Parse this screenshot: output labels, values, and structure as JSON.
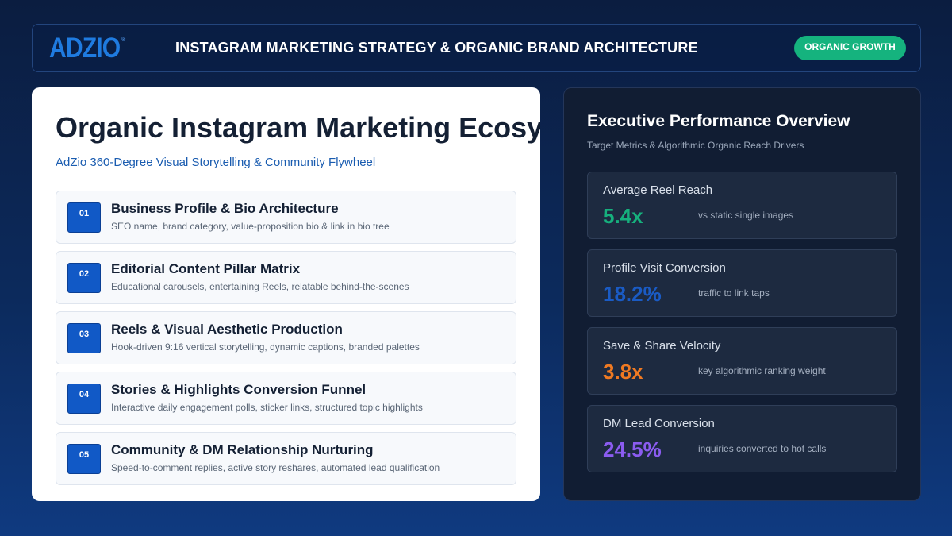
{
  "header": {
    "logo": "ADZIO",
    "logo_mark": "®",
    "title": "INSTAGRAM MARKETING STRATEGY & ORGANIC BRAND ARCHITECTURE",
    "badge": "ORGANIC GROWTH"
  },
  "left": {
    "title": "Organic Instagram Marketing Ecosystem",
    "subtitle": "AdZio 360-Degree Visual Storytelling & Community Flywheel",
    "items": [
      {
        "num": "01",
        "title": "Business Profile & Bio Architecture",
        "desc": "SEO name, brand category, value-proposition bio & link in bio tree"
      },
      {
        "num": "02",
        "title": "Editorial Content Pillar Matrix",
        "desc": "Educational carousels, entertaining Reels, relatable behind-the-scenes"
      },
      {
        "num": "03",
        "title": "Reels & Visual Aesthetic Production",
        "desc": "Hook-driven 9:16 vertical storytelling, dynamic captions, branded palettes"
      },
      {
        "num": "04",
        "title": "Stories & Highlights Conversion Funnel",
        "desc": "Interactive daily engagement polls, sticker links, structured topic highlights"
      },
      {
        "num": "05",
        "title": "Community & DM Relationship Nurturing",
        "desc": "Speed-to-comment replies, active story reshares, automated lead qualification"
      }
    ]
  },
  "right": {
    "title": "Executive Performance Overview",
    "subtitle": "Target Metrics & Algorithmic Organic Reach Drivers",
    "metrics": [
      {
        "label": "Average Reel Reach",
        "value": "5.4x",
        "note": "vs static single images",
        "color": "#16b07d"
      },
      {
        "label": "Profile Visit Conversion",
        "value": "18.2%",
        "note": "traffic to link taps",
        "color": "#1a5bc4"
      },
      {
        "label": "Save & Share Velocity",
        "value": "3.8x",
        "note": "key algorithmic ranking weight",
        "color": "#f07a22"
      },
      {
        "label": "DM Lead Conversion",
        "value": "24.5%",
        "note": "inquiries converted to hot calls",
        "color": "#8b5cf0"
      }
    ]
  },
  "colors": {
    "accent": "#1159c6",
    "badge": "#15b37e"
  }
}
